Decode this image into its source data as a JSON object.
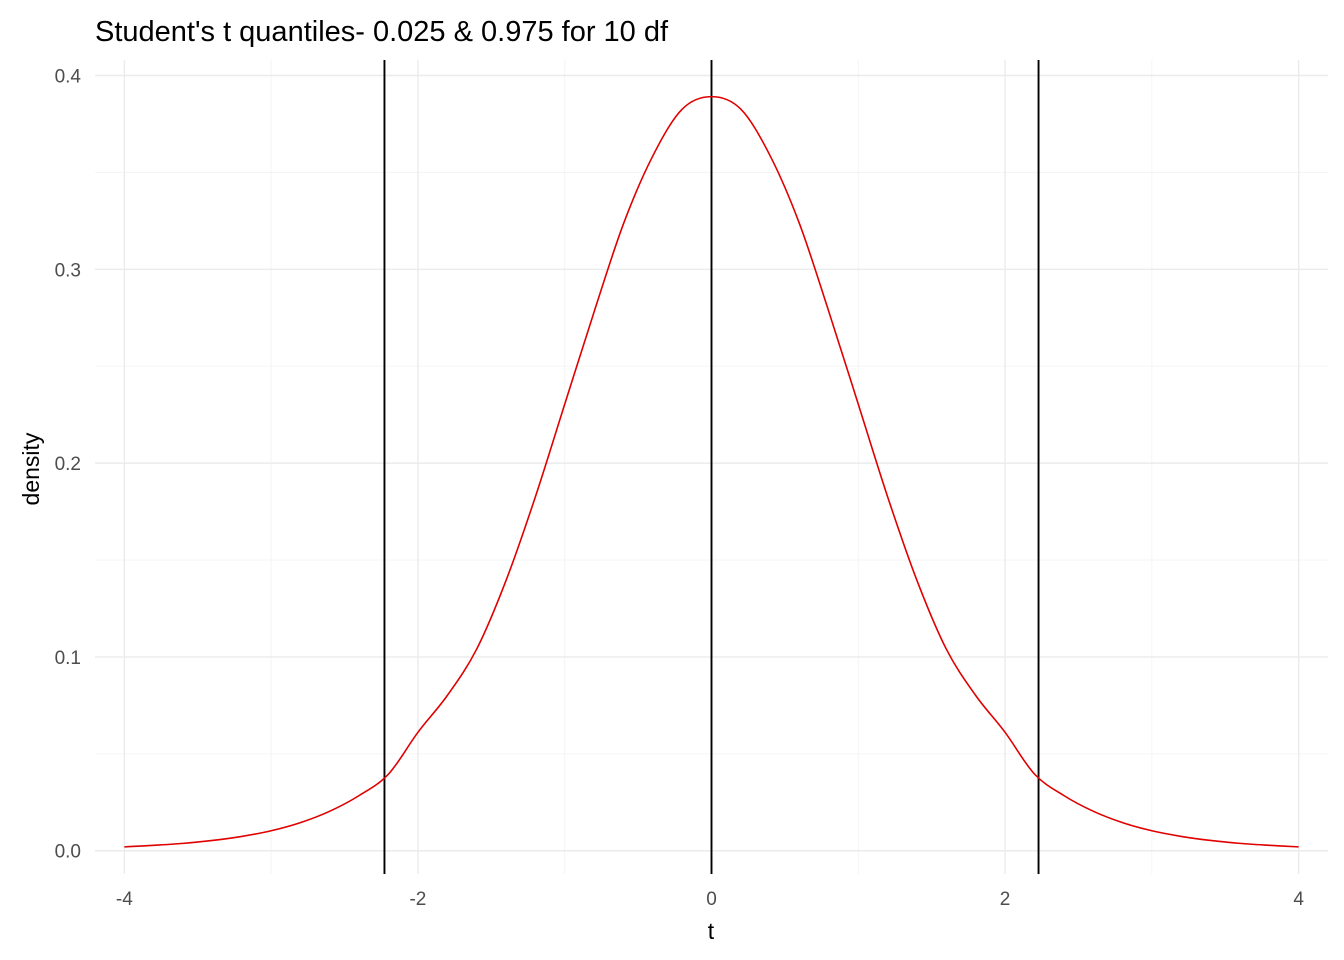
{
  "chart_data": {
    "type": "line",
    "title": "Student's t quantiles- 0.025 & 0.975 for 10 df",
    "xlabel": "t",
    "ylabel": "density",
    "xlim": [
      -4.2,
      4.2
    ],
    "ylim": [
      -0.012,
      0.408
    ],
    "x_ticks": [
      -4,
      -2,
      0,
      2,
      4
    ],
    "x_tick_labels": [
      "-4",
      "-2",
      "0",
      "2",
      "4"
    ],
    "y_ticks": [
      0.0,
      0.1,
      0.2,
      0.3,
      0.4
    ],
    "y_tick_labels": [
      "0.0",
      "0.1",
      "0.2",
      "0.3",
      "0.4"
    ],
    "grid": true,
    "series": [
      {
        "color": "#e00000",
        "x": [
          -4.0,
          -3.8,
          -3.6,
          -3.4,
          -3.2,
          -3.0,
          -2.8,
          -2.6,
          -2.4,
          -2.2,
          -2.0,
          -1.8,
          -1.6,
          -1.4,
          -1.2,
          -1.0,
          -0.8,
          -0.6,
          -0.4,
          -0.2,
          0.0,
          0.2,
          0.4,
          0.6,
          0.8,
          1.0,
          1.2,
          1.4,
          1.6,
          1.8,
          2.0,
          2.2,
          2.4,
          2.6,
          2.8,
          3.0,
          3.2,
          3.4,
          3.6,
          3.8,
          4.0
        ],
        "y": [
          0.002,
          0.0028,
          0.0038,
          0.0053,
          0.0074,
          0.0103,
          0.0145,
          0.0204,
          0.0285,
          0.0396,
          0.0611,
          0.0801,
          0.104,
          0.1394,
          0.1826,
          0.2304,
          0.278,
          0.3234,
          0.3585,
          0.3826,
          0.3891,
          0.3826,
          0.3585,
          0.3234,
          0.278,
          0.2304,
          0.1826,
          0.1394,
          0.104,
          0.0801,
          0.0611,
          0.0396,
          0.0285,
          0.0204,
          0.0145,
          0.0103,
          0.0074,
          0.0053,
          0.0038,
          0.0028,
          0.002
        ]
      }
    ],
    "vlines": [
      {
        "x": -2.228,
        "color": "#000000"
      },
      {
        "x": 0.0,
        "color": "#000000"
      },
      {
        "x": 2.228,
        "color": "#000000"
      }
    ]
  }
}
